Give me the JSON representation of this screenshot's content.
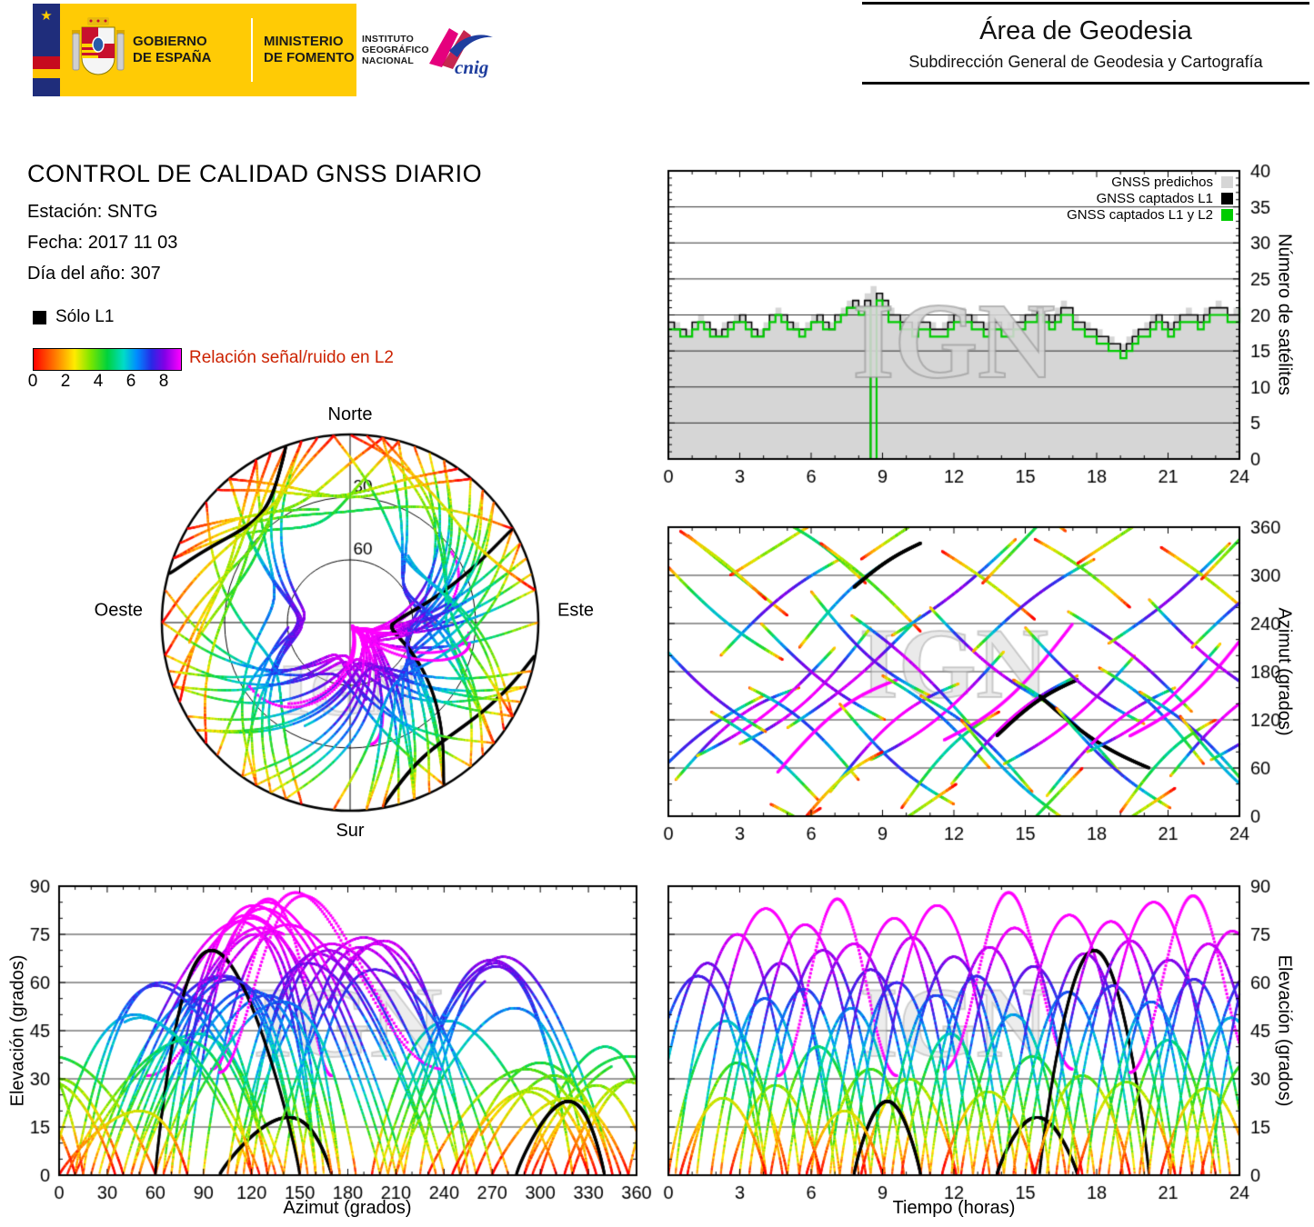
{
  "header": {
    "government_line1": "GOBIERNO",
    "government_line2": "DE ESPAÑA",
    "ministry_line1": "MINISTERIO",
    "ministry_line2": "DE FOMENTO",
    "inst_lines": [
      "INSTITUTO",
      "GEOGRÁFICO",
      "NACIONAL"
    ],
    "cnig": "cnig",
    "area_title": "Área de Geodesia",
    "area_subtitle": "Subdirección General de Geodesia y Cartografía"
  },
  "report": {
    "title": "CONTROL DE CALIDAD GNSS DIARIO",
    "station": "Estación: SNTG",
    "date": "Fecha: 2017 11 03",
    "doy": "Día del año: 307"
  },
  "legend": {
    "solo_l1": "Sólo L1",
    "colorbar_label": "Relación señal/ruido en L2",
    "colorbar_ticks": [
      0,
      2,
      4,
      6,
      8
    ],
    "colorbar_max": 9
  },
  "watermark": "IGN",
  "colors": {
    "predicted_gray": "#d6d6d6",
    "captured_black": "#000000",
    "captured_green": "#00cc00",
    "colorbar_label_red": "#cc2200",
    "gov_yellow": "#ffcb05"
  },
  "chart_data": [
    {
      "id": "satellite_count",
      "type": "area",
      "title": "",
      "xlabel": "",
      "ylabel": "Número de satélites",
      "xlim": [
        0,
        24
      ],
      "ylim": [
        0,
        40
      ],
      "xticks": [
        0,
        3,
        6,
        9,
        12,
        15,
        18,
        21,
        24
      ],
      "yticks": [
        0,
        5,
        10,
        15,
        20,
        25,
        30,
        35,
        40
      ],
      "grid_y": [
        5,
        10,
        15,
        20,
        25,
        30,
        35
      ],
      "legend": [
        {
          "label": "GNSS predichos",
          "color": "#d6d6d6"
        },
        {
          "label": "GNSS captados L1",
          "color": "#000000"
        },
        {
          "label": "GNSS captados L1 y L2",
          "color": "#00cc00"
        }
      ],
      "step_hours": 0.25,
      "series": {
        "predichos": [
          19,
          19,
          18,
          18,
          19,
          20,
          19,
          18,
          18,
          19,
          19,
          20,
          20,
          19,
          18,
          18,
          19,
          20,
          21,
          20,
          19,
          19,
          18,
          19,
          20,
          20,
          19,
          19,
          20,
          21,
          22,
          22,
          21,
          23,
          24,
          23,
          22,
          21,
          20,
          20,
          19,
          19,
          20,
          19,
          19,
          18,
          19,
          20,
          20,
          21,
          20,
          20,
          19,
          19,
          20,
          19,
          18,
          19,
          19,
          20,
          20,
          21,
          21,
          20,
          20,
          21,
          22,
          21,
          20,
          19,
          19,
          18,
          18,
          17,
          17,
          16,
          16,
          17,
          18,
          18,
          19,
          20,
          20,
          19,
          19,
          20,
          20,
          21,
          20,
          20,
          21,
          21,
          22,
          21,
          20,
          21,
          22
        ],
        "captados_l1": [
          19,
          18,
          18,
          17,
          19,
          19,
          19,
          18,
          17,
          18,
          19,
          19,
          20,
          19,
          18,
          17,
          18,
          20,
          20,
          20,
          19,
          18,
          18,
          18,
          19,
          20,
          19,
          18,
          20,
          20,
          21,
          22,
          21,
          22,
          0,
          23,
          22,
          20,
          20,
          19,
          19,
          18,
          19,
          19,
          18,
          18,
          18,
          19,
          20,
          20,
          20,
          19,
          19,
          18,
          19,
          19,
          18,
          18,
          19,
          19,
          20,
          20,
          21,
          20,
          19,
          20,
          21,
          21,
          19,
          19,
          18,
          18,
          17,
          17,
          16,
          16,
          15,
          16,
          17,
          18,
          18,
          19,
          20,
          19,
          18,
          19,
          20,
          20,
          20,
          19,
          20,
          21,
          21,
          21,
          20,
          20,
          22
        ],
        "captados_l1_l2": [
          18,
          18,
          17,
          17,
          18,
          19,
          18,
          17,
          17,
          17,
          18,
          19,
          19,
          18,
          17,
          17,
          18,
          19,
          20,
          19,
          18,
          18,
          17,
          18,
          19,
          19,
          18,
          18,
          19,
          20,
          21,
          21,
          20,
          21,
          0,
          22,
          21,
          19,
          19,
          18,
          18,
          17,
          18,
          18,
          17,
          17,
          17,
          18,
          19,
          19,
          19,
          18,
          18,
          17,
          18,
          18,
          17,
          17,
          18,
          18,
          19,
          19,
          20,
          19,
          18,
          19,
          20,
          20,
          18,
          18,
          17,
          17,
          16,
          16,
          15,
          15,
          14,
          15,
          16,
          17,
          17,
          18,
          19,
          18,
          17,
          18,
          19,
          19,
          19,
          18,
          19,
          20,
          20,
          20,
          19,
          19,
          21
        ]
      }
    },
    {
      "id": "skyplot",
      "type": "scatter",
      "labels": {
        "north": "Norte",
        "south": "Sur",
        "east": "Este",
        "west": "Oeste"
      },
      "rings": [
        "30",
        "60"
      ],
      "elevation_rings_deg": [
        30,
        60
      ],
      "tracks": "track_model"
    },
    {
      "id": "azimuth_vs_time",
      "type": "scatter",
      "xlabel": "",
      "ylabel": "Azimut (grados)",
      "xlim": [
        0,
        24
      ],
      "ylim": [
        0,
        360
      ],
      "xticks": [
        0,
        3,
        6,
        9,
        12,
        15,
        18,
        21,
        24
      ],
      "yticks": [
        0,
        60,
        120,
        180,
        240,
        300,
        360
      ],
      "grid_y": [
        60,
        120,
        180,
        240,
        300
      ],
      "tracks": "track_model"
    },
    {
      "id": "elevation_vs_azimuth",
      "type": "scatter",
      "xlabel": "Azimut (grados)",
      "ylabel": "Elevación (grados)",
      "xlim": [
        0,
        360
      ],
      "ylim": [
        0,
        90
      ],
      "xticks": [
        0,
        30,
        60,
        90,
        120,
        150,
        180,
        210,
        240,
        270,
        300,
        330,
        360
      ],
      "yticks": [
        0,
        15,
        30,
        45,
        60,
        75,
        90
      ],
      "grid_y": [
        15,
        30,
        45,
        60,
        75
      ],
      "tracks": "track_model"
    },
    {
      "id": "elevation_vs_time",
      "type": "scatter",
      "xlabel": "Tiempo (horas)",
      "ylabel": "Elevación (grados)",
      "xlim": [
        0,
        24
      ],
      "ylim": [
        0,
        90
      ],
      "xticks": [
        0,
        3,
        6,
        9,
        12,
        15,
        18,
        21,
        24
      ],
      "yticks": [
        0,
        15,
        30,
        45,
        60,
        75,
        90
      ],
      "grid_y": [
        15,
        30,
        45,
        60,
        75
      ],
      "tracks": "track_model"
    }
  ],
  "track_model": {
    "colormap": {
      "domain": [
        0,
        9
      ],
      "stops": [
        [
          0,
          "#ff0000"
        ],
        [
          1.3,
          "#ff7800"
        ],
        [
          2.5,
          "#ffeb00"
        ],
        [
          3.5,
          "#78e600"
        ],
        [
          4.5,
          "#00d23c"
        ],
        [
          5.5,
          "#00dcc8"
        ],
        [
          6.3,
          "#008cff"
        ],
        [
          7.2,
          "#2828e6"
        ],
        [
          8.0,
          "#8200e6"
        ],
        [
          9,
          "#ff00ff"
        ]
      ]
    },
    "pass_format": [
      "t0_h",
      "dur_h",
      "az_start_deg",
      "az_end_deg",
      "bend_deg",
      "el_max_deg",
      "snr_offset",
      "style_0color_1blackL1_2zenithDotted"
    ],
    "passes": [
      [
        -1.5,
        5.5,
        20,
        150,
        15,
        62,
        0.3,
        0
      ],
      [
        0.0,
        4.8,
        310,
        195,
        -10,
        48,
        -0.4,
        0
      ],
      [
        0.3,
        5.2,
        45,
        160,
        20,
        75,
        0.8,
        0
      ],
      [
        0.8,
        4.2,
        350,
        250,
        0,
        35,
        -0.8,
        0
      ],
      [
        1.2,
        5.8,
        75,
        210,
        -15,
        83,
        1.2,
        0
      ],
      [
        1.8,
        4.5,
        130,
        20,
        10,
        55,
        0.0,
        0
      ],
      [
        2.2,
        5.0,
        200,
        320,
        12,
        66,
        0.5,
        0
      ],
      [
        2.6,
        3.8,
        300,
        370,
        0,
        28,
        -1.0,
        0
      ],
      [
        3.0,
        5.5,
        90,
        235,
        -20,
        78,
        1.0,
        0
      ],
      [
        3.4,
        4.6,
        160,
        45,
        15,
        58,
        0.2,
        0
      ],
      [
        3.9,
        5.2,
        240,
        120,
        -12,
        70,
        0.6,
        0
      ],
      [
        4.3,
        4.0,
        15,
        -70,
        8,
        40,
        -0.6,
        0
      ],
      [
        4.6,
        5.0,
        55,
        170,
        18,
        86,
        1.4,
        2
      ],
      [
        5.0,
        5.6,
        110,
        250,
        -10,
        72,
        0.9,
        0
      ],
      [
        5.5,
        4.4,
        210,
        330,
        14,
        52,
        0.0,
        0
      ],
      [
        6.0,
        5.0,
        280,
        150,
        -18,
        64,
        0.4,
        0
      ],
      [
        6.4,
        4.2,
        340,
        230,
        6,
        33,
        -0.9,
        0
      ],
      [
        6.8,
        5.4,
        30,
        165,
        22,
        80,
        1.1,
        0
      ],
      [
        7.2,
        4.8,
        140,
        15,
        -14,
        60,
        0.3,
        0
      ],
      [
        7.7,
        5.1,
        250,
        110,
        10,
        74,
        0.7,
        0
      ],
      [
        8.1,
        4.0,
        320,
        400,
        0,
        30,
        -1.1,
        0
      ],
      [
        8.5,
        5.6,
        70,
        205,
        -16,
        84,
        1.3,
        0
      ],
      [
        9.0,
        4.5,
        175,
        60,
        12,
        56,
        0.1,
        0
      ],
      [
        9.4,
        5.2,
        225,
        345,
        -8,
        68,
        0.5,
        0
      ],
      [
        9.8,
        4.1,
        10,
        130,
        16,
        44,
        -0.5,
        0
      ],
      [
        11.6,
        5.4,
        95,
        240,
        -20,
        88,
        1.5,
        2
      ],
      [
        10.6,
        4.7,
        150,
        30,
        14,
        62,
        0.2,
        0
      ],
      [
        11.0,
        5.0,
        260,
        140,
        -12,
        71,
        0.8,
        0
      ],
      [
        11.5,
        3.9,
        330,
        245,
        4,
        26,
        -1.2,
        0
      ],
      [
        11.9,
        5.3,
        40,
        175,
        18,
        77,
        1.0,
        0
      ],
      [
        12.3,
        4.4,
        120,
        -5,
        -10,
        50,
        -0.2,
        0
      ],
      [
        12.8,
        5.1,
        205,
        320,
        10,
        65,
        0.4,
        0
      ],
      [
        13.2,
        4.2,
        290,
        420,
        0,
        37,
        -0.7,
        0
      ],
      [
        13.8,
        3.4,
        100,
        170,
        8,
        18,
        0.0,
        1
      ],
      [
        14.1,
        5.5,
        65,
        200,
        -15,
        81,
        1.2,
        0
      ],
      [
        14.5,
        4.6,
        170,
        50,
        12,
        57,
        0.1,
        0
      ],
      [
        15.0,
        5.0,
        235,
        115,
        -14,
        69,
        0.6,
        0
      ],
      [
        15.6,
        4.6,
        150,
        60,
        -10,
        70,
        0.0,
        1
      ],
      [
        15.4,
        4.0,
        345,
        260,
        6,
        31,
        -1.0,
        0
      ],
      [
        15.9,
        5.4,
        25,
        160,
        20,
        79,
        1.1,
        0
      ],
      [
        16.3,
        4.8,
        135,
        10,
        -12,
        59,
        0.3,
        0
      ],
      [
        16.8,
        5.2,
        255,
        130,
        10,
        73,
        0.7,
        0
      ],
      [
        17.2,
        4.1,
        315,
        395,
        0,
        29,
        -1.1,
        0
      ],
      [
        17.6,
        5.6,
        80,
        215,
        -18,
        85,
        1.4,
        0
      ],
      [
        18.1,
        4.4,
        185,
        65,
        14,
        54,
        0.0,
        0
      ],
      [
        18.5,
        5.1,
        215,
        340,
        -8,
        67,
        0.5,
        0
      ],
      [
        19.0,
        4.0,
        5,
        120,
        16,
        42,
        -0.6,
        0
      ],
      [
        19.4,
        5.3,
        100,
        245,
        -20,
        87,
        1.5,
        2
      ],
      [
        19.8,
        4.6,
        155,
        35,
        12,
        61,
        0.2,
        0
      ],
      [
        20.2,
        5.0,
        270,
        145,
        -10,
        72,
        0.8,
        0
      ],
      [
        20.7,
        3.8,
        335,
        250,
        4,
        27,
        -1.2,
        0
      ],
      [
        21.1,
        5.2,
        50,
        180,
        18,
        76,
        1.0,
        0
      ],
      [
        21.5,
        4.3,
        125,
        0,
        -12,
        49,
        -0.3,
        0
      ],
      [
        22.0,
        5.0,
        210,
        325,
        10,
        63,
        0.4,
        0
      ],
      [
        22.4,
        4.2,
        295,
        425,
        0,
        36,
        -0.8,
        0
      ],
      [
        22.8,
        5.4,
        70,
        205,
        -16,
        82,
        1.2,
        0
      ],
      [
        7.8,
        2.8,
        285,
        340,
        5,
        23,
        0.0,
        1
      ],
      [
        -0.8,
        4.9,
        230,
        105,
        -12,
        66,
        0.5,
        0
      ],
      [
        0.5,
        3.6,
        355,
        270,
        4,
        24,
        -1.1,
        0
      ],
      [
        5.8,
        3.2,
        0,
        80,
        10,
        20,
        -0.9,
        0
      ]
    ]
  }
}
